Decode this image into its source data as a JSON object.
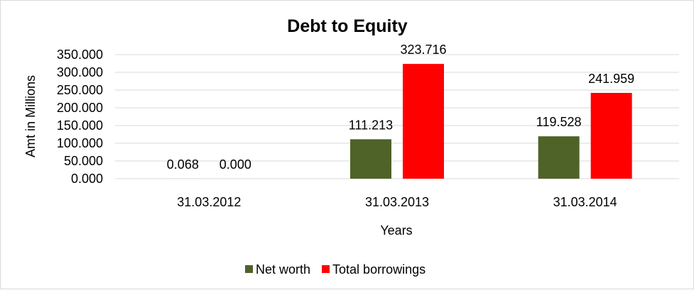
{
  "chart_data": {
    "type": "bar",
    "title": "Debt to Equity",
    "xlabel": "Years",
    "ylabel": "Amt in Millions",
    "categories": [
      "31.03.2012",
      "31.03.2013",
      "31.03.2014"
    ],
    "series": [
      {
        "name": "Net worth",
        "color": "#4f6228",
        "values": [
          0.068,
          111.213,
          119.528
        ],
        "labels": [
          "0.068",
          "111.213",
          "119.528"
        ]
      },
      {
        "name": "Total borrowings",
        "color": "#ff0000",
        "values": [
          0.0,
          323.716,
          241.959
        ],
        "labels": [
          "0.000",
          "323.716",
          "241.959"
        ]
      }
    ],
    "ylim": [
      0,
      350
    ],
    "yticks": [
      "0.000",
      "50.000",
      "100.000",
      "150.000",
      "200.000",
      "250.000",
      "300.000",
      "350.000"
    ],
    "grid": true,
    "legend": "bottom"
  }
}
